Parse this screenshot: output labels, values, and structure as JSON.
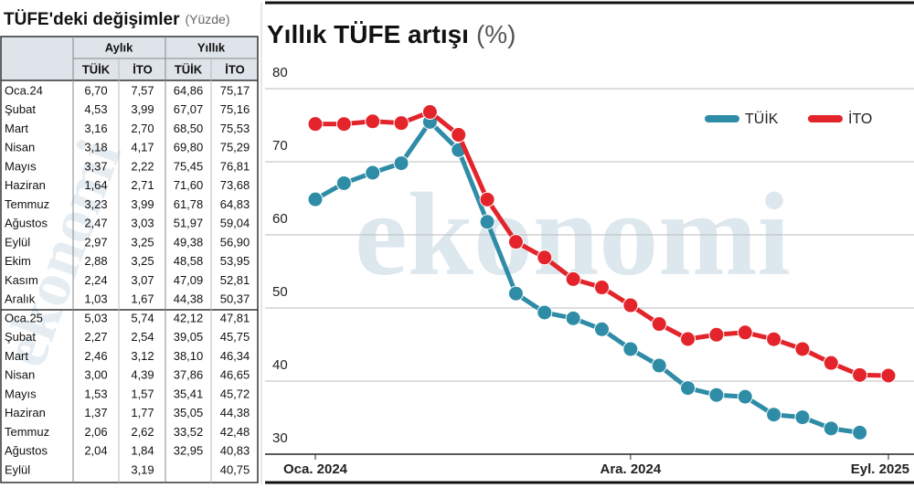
{
  "table": {
    "title": "TÜFE'deki değişimler",
    "unit": "(Yüzde)",
    "groups": [
      "Aylık",
      "Yıllık"
    ],
    "subheaders": [
      "TÜİK",
      "İTO",
      "TÜİK",
      "İTO"
    ],
    "rows": [
      [
        "Oca.24",
        "6,70",
        "7,57",
        "64,86",
        "75,17"
      ],
      [
        "Şubat",
        "4,53",
        "3,99",
        "67,07",
        "75,16"
      ],
      [
        "Mart",
        "3,16",
        "2,70",
        "68,50",
        "75,53"
      ],
      [
        "Nisan",
        "3,18",
        "4,17",
        "69,80",
        "75,29"
      ],
      [
        "Mayıs",
        "3,37",
        "2,22",
        "75,45",
        "76,81"
      ],
      [
        "Haziran",
        "1,64",
        "2,71",
        "71,60",
        "73,68"
      ],
      [
        "Temmuz",
        "3,23",
        "3,99",
        "61,78",
        "64,83"
      ],
      [
        "Ağustos",
        "2,47",
        "3,03",
        "51,97",
        "59,04"
      ],
      [
        "Eylül",
        "2,97",
        "3,25",
        "49,38",
        "56,90"
      ],
      [
        "Ekim",
        "2,88",
        "3,25",
        "48,58",
        "53,95"
      ],
      [
        "Kasım",
        "2,24",
        "3,07",
        "47,09",
        "52,81"
      ],
      [
        "Aralık",
        "1,03",
        "1,67",
        "44,38",
        "50,37"
      ],
      [
        "Oca.25",
        "5,03",
        "5,74",
        "42,12",
        "47,81"
      ],
      [
        "Şubat",
        "2,27",
        "2,54",
        "39,05",
        "45,75"
      ],
      [
        "Mart",
        "2,46",
        "3,12",
        "38,10",
        "46,34"
      ],
      [
        "Nisan",
        "3,00",
        "4,39",
        "37,86",
        "46,65"
      ],
      [
        "Mayıs",
        "1,53",
        "1,57",
        "35,41",
        "45,72"
      ],
      [
        "Haziran",
        "1,37",
        "1,77",
        "35,05",
        "44,38"
      ],
      [
        "Temmuz",
        "2,06",
        "2,62",
        "33,52",
        "42,48"
      ],
      [
        "Ağustos",
        "2,04",
        "1,84",
        "32,95",
        "40,83"
      ],
      [
        "Eylül",
        null,
        "3,19",
        null,
        "40,75"
      ]
    ]
  },
  "watermark": "ekonomi",
  "chart_data": {
    "type": "line",
    "title": "Yıllık TÜFE artışı",
    "subtitle": "(%)",
    "categories": [
      "Oca. 2024",
      null,
      null,
      null,
      null,
      null,
      null,
      null,
      null,
      null,
      null,
      "Ara. 2024",
      null,
      null,
      null,
      null,
      null,
      null,
      null,
      null,
      "Eyl. 2025"
    ],
    "series": [
      {
        "name": "TÜİK",
        "color": "#2f8ca6",
        "values": [
          64.86,
          67.07,
          68.5,
          69.8,
          75.45,
          71.6,
          61.78,
          51.97,
          49.38,
          48.58,
          47.09,
          44.38,
          42.12,
          39.05,
          38.1,
          37.86,
          35.41,
          35.05,
          33.52,
          32.95,
          null
        ]
      },
      {
        "name": "İTO",
        "color": "#e3242b",
        "values": [
          75.17,
          75.16,
          75.53,
          75.29,
          76.81,
          73.68,
          64.83,
          59.04,
          56.9,
          53.95,
          52.81,
          50.37,
          47.81,
          45.75,
          46.34,
          46.65,
          45.72,
          44.38,
          42.48,
          40.83,
          40.75
        ]
      }
    ],
    "ylim": [
      28,
      84
    ],
    "yticks": [
      30,
      40,
      50,
      60,
      70,
      80
    ],
    "grid": true,
    "legend": "top-right"
  }
}
